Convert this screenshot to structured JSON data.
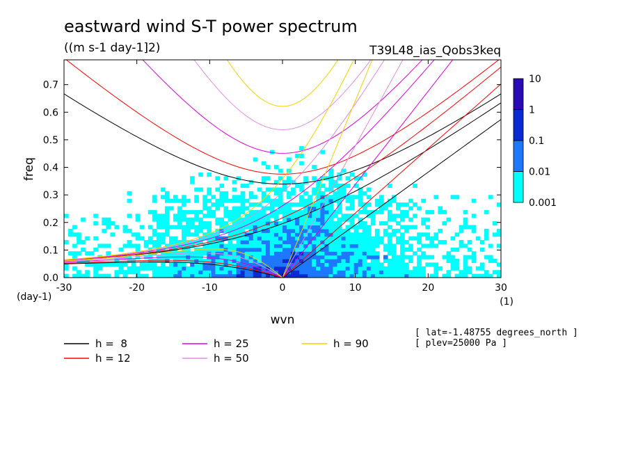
{
  "chart_data": {
    "type": "heatmap",
    "title": "eastward wind S-T power spectrum",
    "subtitle": "((m s-1 day-1]2)",
    "experiment": "T39L48_ias_Qobs3keq",
    "xlabel": "wvn",
    "ylabel": "freq",
    "x_unit": "(1)",
    "y_unit": "(day-1)",
    "xlim": [
      -30,
      30
    ],
    "ylim": [
      0,
      0.79
    ],
    "xticks": [
      "-30",
      "-20",
      "-10",
      "0",
      "10",
      "20",
      "30"
    ],
    "xtick_values": [
      -30,
      -20,
      -10,
      0,
      10,
      20,
      30
    ],
    "yticks": [
      "0.0",
      "0.1",
      "0.2",
      "0.3",
      "0.4",
      "0.5",
      "0.6",
      "0.7"
    ],
    "ytick_values": [
      0,
      0.1,
      0.2,
      0.3,
      0.4,
      0.5,
      0.6,
      0.7
    ],
    "colorbar": {
      "levels": [
        "0.001",
        "0.01",
        "0.1",
        "1",
        "10"
      ],
      "colors": [
        "#00ffff",
        "#1e78ff",
        "#0a2bd2",
        "#2a0ab4"
      ]
    },
    "dispersion_curves": [
      {
        "label": "h =  8",
        "h": 8,
        "color": "#000000"
      },
      {
        "label": "h = 12",
        "h": 12,
        "color": "#ff0000"
      },
      {
        "label": "h = 25",
        "h": 25,
        "color": "#dd00dd"
      },
      {
        "label": "h = 50",
        "h": 50,
        "color": "#e28be2"
      },
      {
        "label": "h = 90",
        "h": 90,
        "color": "#f0d200"
      }
    ],
    "annotations": [
      "[ lat=-1.48755 degrees_north ]",
      "[ plev=25000 Pa ]"
    ]
  }
}
